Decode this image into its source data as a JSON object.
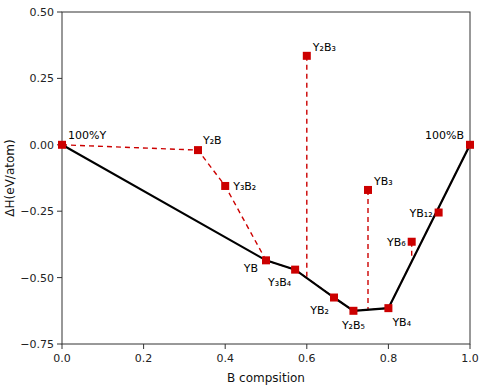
{
  "chart_data": {
    "type": "scatter",
    "xlabel": "B compsition",
    "ylabel": "ΔH(eV/atom)",
    "xlim": [
      0.0,
      1.0
    ],
    "ylim": [
      -0.75,
      0.5
    ],
    "xticks": [
      {
        "value": 0.0,
        "label": "0.0"
      },
      0.2,
      0.4,
      0.6,
      0.8,
      {
        "value": 1.0,
        "label": "1.0"
      }
    ],
    "yticks": [
      {
        "value": -0.75,
        "label": "−0.75"
      },
      {
        "value": -0.5,
        "label": "−0.50"
      },
      {
        "value": -0.25,
        "label": "−0.25"
      },
      {
        "value": 0.0,
        "label": "0.00"
      },
      {
        "value": 0.25,
        "label": "0.25"
      },
      {
        "value": 0.5,
        "label": "0.50"
      }
    ],
    "series": [
      {
        "type": "line",
        "line_style": "dashed",
        "color": "#cc0000",
        "x": [
          0.0,
          0.3333,
          0.4,
          0.5,
          0.5714,
          0.6667,
          0.7143,
          0.8,
          1.0
        ],
        "values": [
          0.0,
          -0.02,
          -0.155,
          -0.435,
          -0.47,
          -0.575,
          -0.625,
          -0.615,
          0.0
        ]
      },
      {
        "type": "vertical_lines",
        "line_style": "dashed",
        "color": "#cc0000",
        "x": [
          0.6,
          0.75,
          0.8571,
          0.9231
        ],
        "values": [
          0.335,
          -0.17,
          -0.365,
          -0.255
        ],
        "ends": [
          -0.50151,
          -0.62083,
          -0.43942,
          -0.23647
        ]
      },
      {
        "type": "line",
        "line_style": "solid",
        "color": "#000000",
        "x": [
          0.0,
          0.5,
          0.5714,
          0.6667,
          0.7143,
          0.8,
          1.0
        ],
        "values": [
          0.0,
          -0.435,
          -0.47,
          -0.575,
          -0.625,
          -0.615,
          0.0
        ]
      },
      {
        "type": "scatter",
        "marker": "square",
        "color": "#cc0000",
        "x": [
          0.0,
          0.3333,
          0.4,
          0.5,
          0.6,
          0.5714,
          0.6667,
          0.7143,
          0.75,
          0.8,
          0.8571,
          0.9231,
          1.0
        ],
        "values": [
          0.0,
          -0.02,
          -0.155,
          -0.435,
          0.335,
          -0.47,
          -0.575,
          -0.625,
          -0.17,
          -0.615,
          -0.365,
          -0.255,
          0.0
        ],
        "labels": [
          "100%Y",
          "Y₂B",
          "Y₃B₂",
          "YB",
          "Y₂B₃",
          "Y₃B₄",
          "YB₂",
          "Y₂B₅",
          "YB₃",
          "YB₄",
          "YB₆",
          "YB₁₂",
          "100%B"
        ]
      }
    ]
  }
}
